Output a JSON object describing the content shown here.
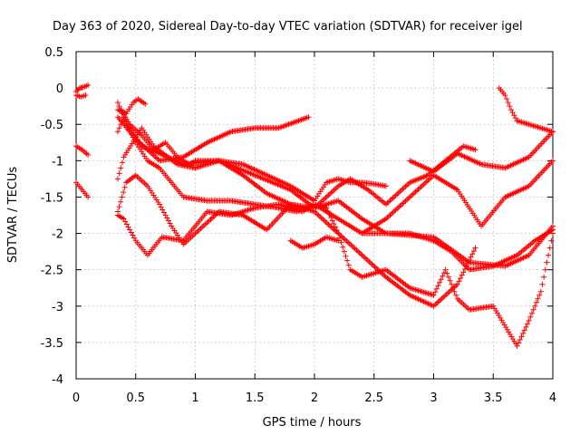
{
  "chart_data": {
    "type": "scatter",
    "title": "Day 363 of 2020, Sidereal Day-to-day VTEC variation (SDTVAR) for receiver igel",
    "xlabel": "GPS time / hours",
    "ylabel": "SDTVAR / TECUs",
    "xlim": [
      0,
      4
    ],
    "ylim": [
      -4,
      0.5
    ],
    "x_ticks": [
      "0",
      "0.5",
      "1",
      "1.5",
      "2",
      "2.5",
      "3",
      "3.5",
      "4"
    ],
    "x_tick_values": [
      0,
      0.5,
      1,
      1.5,
      2,
      2.5,
      3,
      3.5,
      4
    ],
    "y_ticks": [
      "0.5",
      "0",
      "-0.5",
      "-1",
      "-1.5",
      "-2",
      "-2.5",
      "-3",
      "-3.5",
      "-4"
    ],
    "y_tick_values": [
      0.5,
      0,
      -0.5,
      -1,
      -1.5,
      -2,
      -2.5,
      -3,
      -3.5,
      -4
    ],
    "grid": true,
    "marker": "+",
    "marker_color": "#ff0000",
    "traces": [
      {
        "x": [
          0,
          0.03,
          0.06,
          0.1
        ],
        "y": [
          -0.05,
          0,
          0.01,
          0.04
        ]
      },
      {
        "x": [
          0,
          0.04,
          0.08
        ],
        "y": [
          -0.1,
          -0.12,
          -0.1
        ]
      },
      {
        "x": [
          0,
          0.05,
          0.1
        ],
        "y": [
          -0.8,
          -0.85,
          -0.92
        ]
      },
      {
        "x": [
          0,
          0.05,
          0.1
        ],
        "y": [
          -1.3,
          -1.4,
          -1.5
        ]
      },
      {
        "x": [
          0.35,
          0.42,
          0.48,
          0.52,
          0.58
        ],
        "y": [
          -0.3,
          -0.35,
          -0.2,
          -0.15,
          -0.22
        ]
      },
      {
        "x": [
          0.35,
          0.5,
          0.7,
          0.9,
          1.1,
          1.3,
          1.5,
          1.7,
          1.95
        ],
        "y": [
          -0.4,
          -0.7,
          -1.0,
          -0.95,
          -0.75,
          -0.6,
          -0.55,
          -0.55,
          -0.4
        ]
      },
      {
        "x": [
          0.35,
          0.4,
          0.55,
          0.7,
          0.9,
          1.2,
          1.5,
          1.8,
          2.0,
          2.2,
          2.4,
          2.6,
          3.0,
          3.3,
          3.6,
          3.8,
          4.0
        ],
        "y": [
          -0.6,
          -0.4,
          -0.8,
          -0.9,
          -1.05,
          -1.0,
          -1.2,
          -1.4,
          -1.65,
          -1.55,
          -1.8,
          -2.0,
          -2.05,
          -2.4,
          -2.45,
          -2.3,
          -1.9
        ]
      },
      {
        "x": [
          0.35,
          0.4,
          0.55,
          0.65,
          0.85,
          1.0,
          1.2,
          1.4,
          1.6,
          1.8,
          2.0,
          2.1,
          2.2,
          2.3,
          2.4,
          2.5,
          2.6
        ],
        "y": [
          -1.25,
          -0.95,
          -0.55,
          -0.8,
          -1.05,
          -1.1,
          -1.0,
          -1.05,
          -1.2,
          -1.35,
          -1.55,
          -1.3,
          -1.25,
          -1.3,
          -1.3,
          -1.32,
          -1.35
        ]
      },
      {
        "x": [
          0.35,
          0.4,
          0.5,
          0.6,
          0.72,
          0.9,
          1.1,
          1.3,
          1.5,
          1.7,
          1.9,
          2.0,
          2.2,
          2.4,
          2.6,
          2.8,
          3.0,
          3.15,
          3.3,
          3.5,
          3.7,
          3.85,
          4.0
        ],
        "y": [
          -1.75,
          -1.8,
          -2.1,
          -2.3,
          -2.05,
          -2.1,
          -1.7,
          -1.75,
          -1.65,
          -1.6,
          -1.7,
          -1.6,
          -1.8,
          -2.0,
          -2.0,
          -2.0,
          -2.1,
          -2.25,
          -2.5,
          -2.45,
          -2.3,
          -2.1,
          -1.95
        ]
      },
      {
        "x": [
          0.35,
          0.42,
          0.5,
          0.6,
          0.7,
          0.8,
          0.9,
          1.0,
          1.2,
          1.4,
          1.6,
          1.8,
          2.0,
          2.2,
          2.4,
          2.6,
          2.8,
          3.0,
          3.2,
          3.35
        ],
        "y": [
          -1.7,
          -1.3,
          -1.2,
          -1.35,
          -1.6,
          -1.9,
          -2.15,
          -2.0,
          -1.7,
          -1.75,
          -1.95,
          -1.6,
          -1.7,
          -2.0,
          -2.3,
          -2.6,
          -2.85,
          -3.0,
          -2.7,
          -2.2
        ]
      },
      {
        "x": [
          0.38,
          0.45,
          0.55,
          0.65,
          0.75,
          0.85,
          0.95,
          1.0,
          1.2,
          1.4,
          1.6,
          1.8,
          2.0,
          2.2,
          2.3,
          2.45,
          2.6,
          2.8,
          2.95,
          3.1,
          3.25,
          3.35
        ],
        "y": [
          -0.3,
          -0.5,
          -0.65,
          -0.85,
          -0.75,
          -0.95,
          -1.05,
          -1.0,
          -1.0,
          -1.2,
          -1.45,
          -1.6,
          -1.65,
          -1.35,
          -1.25,
          -1.4,
          -1.6,
          -1.3,
          -1.2,
          -1.0,
          -0.8,
          -0.85
        ]
      },
      {
        "x": [
          0.35,
          0.42,
          0.5,
          0.6,
          0.7,
          0.8,
          0.9,
          1.1,
          1.3,
          1.5,
          1.7,
          1.85,
          2.0,
          2.1,
          2.2,
          2.3,
          2.4,
          2.5,
          2.6,
          2.8,
          3.0,
          3.1,
          3.2,
          3.3,
          3.5,
          3.7,
          3.8,
          3.9,
          4.0
        ],
        "y": [
          -0.2,
          -0.5,
          -0.75,
          -1.0,
          -1.1,
          -1.3,
          -1.5,
          -1.55,
          -1.55,
          -1.6,
          -1.65,
          -1.7,
          -1.6,
          -1.65,
          -2.0,
          -2.5,
          -2.6,
          -2.55,
          -2.5,
          -2.75,
          -2.85,
          -2.5,
          -2.9,
          -3.05,
          -3.0,
          -3.55,
          -3.2,
          -2.8,
          -2.0
        ]
      },
      {
        "x": [
          1.8,
          1.9,
          2.0,
          2.1,
          2.2
        ],
        "y": [
          -2.1,
          -2.2,
          -2.15,
          -2.05,
          -2.1
        ]
      },
      {
        "x": [
          3.55,
          3.6,
          3.65,
          3.7,
          3.8,
          3.9,
          4.0
        ],
        "y": [
          0.0,
          -0.1,
          -0.3,
          -0.45,
          -0.5,
          -0.55,
          -0.6
        ]
      },
      {
        "x": [
          2.4,
          2.6,
          2.8,
          3.0,
          3.2,
          3.4,
          3.6,
          3.8,
          4.0
        ],
        "y": [
          -2.0,
          -1.8,
          -1.5,
          -1.2,
          -1.4,
          -1.9,
          -1.5,
          -1.35,
          -1.0
        ]
      },
      {
        "x": [
          2.8,
          3.0,
          3.2,
          3.4,
          3.6,
          3.8,
          4.0
        ],
        "y": [
          -1.0,
          -1.15,
          -0.9,
          -1.05,
          -1.1,
          -0.95,
          -0.6
        ]
      }
    ]
  }
}
